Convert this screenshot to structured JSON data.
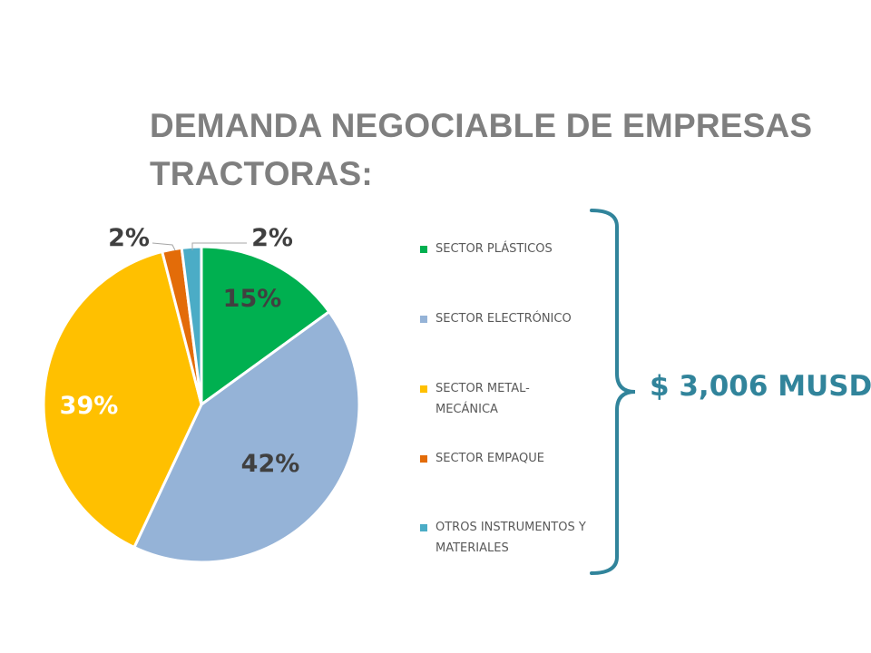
{
  "title_line1": "DEMANDA NEGOCIABLE DE EMPRESAS",
  "title_line2": "TRACTORAS:",
  "chart_data": {
    "type": "pie",
    "title": "DEMANDA NEGOCIABLE DE EMPRESAS TRACTORAS:",
    "categories": [
      "SECTOR PLÁSTICOS",
      "SECTOR ELECTRÓNICO",
      "SECTOR METAL-MECÁNICA",
      "SECTOR EMPAQUE",
      "OTROS INSTRUMENTOS Y MATERIALES"
    ],
    "values": [
      15,
      42,
      39,
      2,
      2
    ],
    "data_labels": [
      "15%",
      "42%",
      "39%",
      "2%",
      "2%"
    ],
    "colors": [
      "#00b050",
      "#95b3d7",
      "#ffc000",
      "#e36c09",
      "#4bacc6"
    ],
    "legend_position": "right"
  },
  "legend": [
    {
      "line1": "SECTOR PLÁSTICOS",
      "line2": "",
      "color": "#00b050"
    },
    {
      "line1": "SECTOR ELECTRÓNICO",
      "line2": "",
      "color": "#95b3d7"
    },
    {
      "line1": "SECTOR METAL-",
      "line2": "MECÁNICA",
      "color": "#ffc000"
    },
    {
      "line1": "SECTOR EMPAQUE",
      "line2": "",
      "color": "#e36c09"
    },
    {
      "line1": "OTROS INSTRUMENTOS Y",
      "line2": "MATERIALES",
      "color": "#4bacc6"
    }
  ],
  "total_label": "$ 3,006 MUSD",
  "accent_color": "#31849b"
}
